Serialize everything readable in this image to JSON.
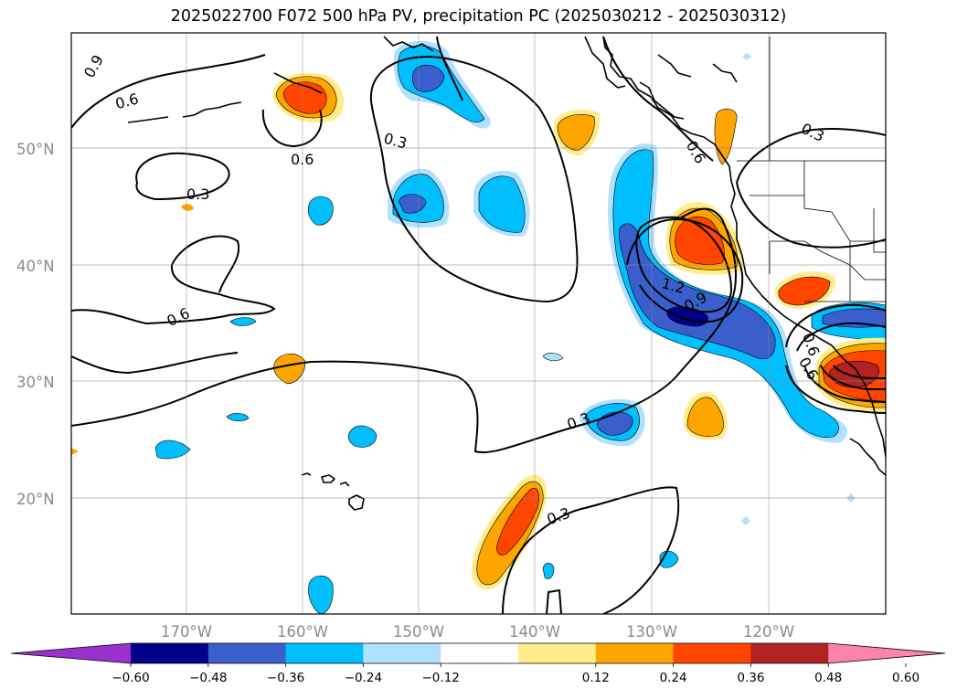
{
  "title": "2025022700 F072 500 hPa PV, precipitation PC (2025030212 - 2025030312)",
  "map": {
    "lat_labels": [
      "50°N",
      "40°N",
      "30°N",
      "20°N"
    ],
    "lon_labels": [
      "170°W",
      "160°W",
      "150°W",
      "140°W",
      "130°W",
      "120°W"
    ],
    "contour_labels": [
      "0.9",
      "0.6",
      "0.6",
      "0.3",
      "0.3",
      "0.6",
      "0.3",
      "1.2",
      "0.9",
      "0.6",
      "0.6",
      "0.3",
      "0.3",
      "0.6"
    ]
  },
  "colorbar": {
    "colors": [
      "#9932cc",
      "#00008b",
      "#3a5fcd",
      "#00bfff",
      "#b0e2ff",
      "#ffffff",
      "#ffec8b",
      "#ffa500",
      "#ff4500",
      "#b22222",
      "#ff82ab"
    ],
    "ticks": [
      "−0.60",
      "−0.48",
      "−0.36",
      "−0.24",
      "−0.12",
      "0.12",
      "0.24",
      "0.36",
      "0.48",
      "0.60"
    ]
  }
}
